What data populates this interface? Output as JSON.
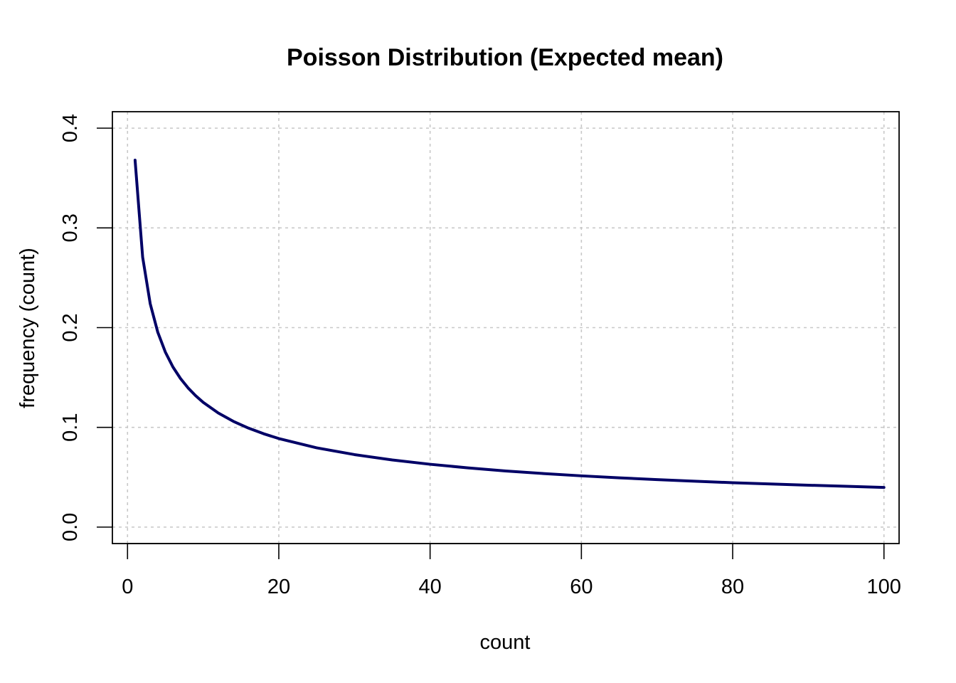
{
  "chart_data": {
    "type": "line",
    "title": "Poisson Distribution (Expected mean)",
    "xlabel": "count",
    "ylabel": "frequency (count)",
    "xlim": [
      -2,
      102
    ],
    "ylim": [
      -0.0165,
      0.4165
    ],
    "x_ticks": [
      0,
      20,
      40,
      60,
      80,
      100
    ],
    "x_tick_labels": [
      "0",
      "20",
      "40",
      "60",
      "80",
      "100"
    ],
    "y_ticks": [
      0.0,
      0.1,
      0.2,
      0.3,
      0.4
    ],
    "y_tick_labels": [
      "0.0",
      "0.1",
      "0.2",
      "0.3",
      "0.4"
    ],
    "grid": true,
    "legend": "none",
    "colors": {
      "line": "#000066",
      "grid": "#c8c8c8",
      "axis": "#000000"
    },
    "series": [
      {
        "x": [
          1,
          2,
          3,
          4,
          5,
          6,
          7,
          8,
          9,
          10,
          12,
          14,
          16,
          18,
          20,
          25,
          30,
          35,
          40,
          45,
          50,
          55,
          60,
          65,
          70,
          75,
          80,
          85,
          90,
          95,
          100
        ],
        "values": [
          0.3679,
          0.2707,
          0.224,
          0.1954,
          0.1755,
          0.1606,
          0.149,
          0.1396,
          0.1318,
          0.1251,
          0.1144,
          0.106,
          0.0992,
          0.0936,
          0.0888,
          0.0795,
          0.0727,
          0.0673,
          0.063,
          0.0594,
          0.0563,
          0.0537,
          0.0514,
          0.0494,
          0.0476,
          0.046,
          0.0445,
          0.0432,
          0.042,
          0.0409,
          0.0398
        ]
      }
    ]
  }
}
